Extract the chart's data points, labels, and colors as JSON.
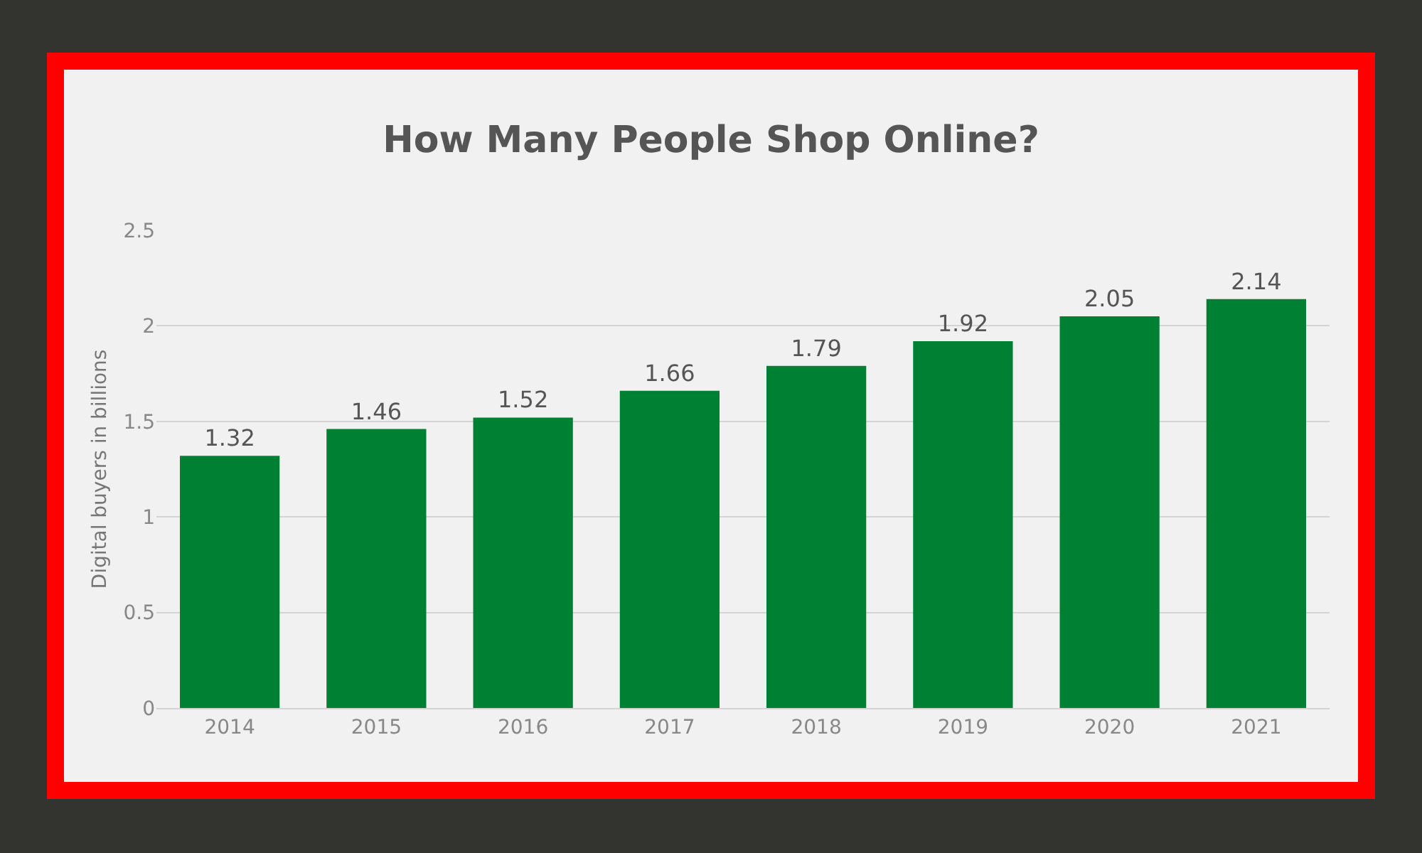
{
  "chart_data": {
    "type": "bar",
    "title": "How Many People Shop Online?",
    "ylabel": "Digital buyers in billions",
    "categories": [
      "2014",
      "2015",
      "2016",
      "2017",
      "2018",
      "2019",
      "2020",
      "2021"
    ],
    "values": [
      1.32,
      1.46,
      1.52,
      1.66,
      1.79,
      1.92,
      2.05,
      2.14
    ],
    "color": "#008033",
    "ylim": [
      0,
      2.5
    ],
    "yticks": [
      0,
      0.5,
      1,
      1.5,
      2,
      2.5
    ],
    "grid": "y",
    "data_labels": true
  }
}
